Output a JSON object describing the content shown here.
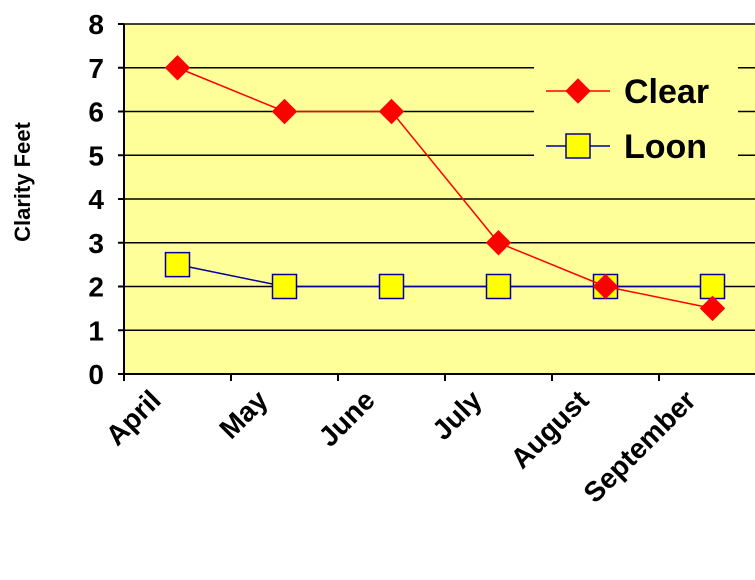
{
  "chart_data": {
    "type": "line",
    "title": "",
    "xlabel": "",
    "ylabel": "Clarity Feet",
    "categories": [
      "April",
      "May",
      "June",
      "July",
      "August",
      "September"
    ],
    "ylim": [
      0,
      8
    ],
    "yticks": [
      "0",
      "1",
      "2",
      "3",
      "4",
      "5",
      "6",
      "7",
      "8"
    ],
    "grid": "horizontal",
    "legend_position": "top-right",
    "plot_background": "#FFFF99",
    "series": [
      {
        "name": "Clear",
        "values": [
          7,
          6,
          6,
          3,
          2,
          1.5
        ],
        "color": "#FF0000",
        "marker": "diamond"
      },
      {
        "name": "Loon",
        "values": [
          2.5,
          2,
          2,
          2,
          2,
          2
        ],
        "color": "#000099",
        "marker_fill": "#FFFF00",
        "marker": "square"
      }
    ]
  }
}
